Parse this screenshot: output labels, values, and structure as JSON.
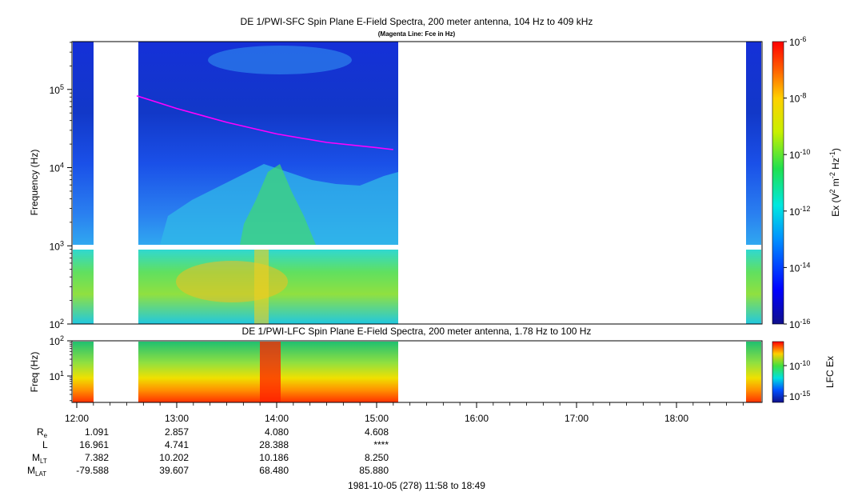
{
  "chart_data": [
    {
      "type": "heatmap",
      "title": "DE 1/PWI-SFC  Spin Plane E-Field Spectra, 200 meter antenna, 104 Hz to 409 kHz",
      "subtitle": "(Magenta Line: Fce in Hz)",
      "ylabel": "Frequency (Hz)",
      "y_scale": "log",
      "ylim": [
        100,
        409000
      ],
      "y_ticks": [
        {
          "label": "10",
          "exp": "2",
          "value": 100
        },
        {
          "label": "10",
          "exp": "3",
          "value": 1000
        },
        {
          "label": "10",
          "exp": "4",
          "value": 10000
        },
        {
          "label": "10",
          "exp": "5",
          "value": 100000
        }
      ],
      "colorbar": {
        "label_parts": [
          "Ex (V",
          "2",
          " m",
          "-2",
          " Hz",
          "-1",
          ")"
        ],
        "scale": "log",
        "range": [
          1e-16,
          1e-06
        ],
        "ticks": [
          {
            "label": "10",
            "exp": "-6"
          },
          {
            "label": "10",
            "exp": "-8"
          },
          {
            "label": "10",
            "exp": "-10"
          },
          {
            "label": "10",
            "exp": "-12"
          },
          {
            "label": "10",
            "exp": "-14"
          },
          {
            "label": "10",
            "exp": "-16"
          }
        ]
      },
      "data_intervals": [
        [
          "11:58",
          "12:10"
        ],
        [
          "12:36",
          "15:12"
        ],
        [
          "18:44",
          "18:49"
        ]
      ],
      "magenta_line_fce": [
        {
          "time": "12:36",
          "value": 83000
        },
        {
          "time": "13:00",
          "value": 57000
        },
        {
          "time": "13:30",
          "value": 38000
        },
        {
          "time": "14:00",
          "value": 27000
        },
        {
          "time": "14:30",
          "value": 21000
        },
        {
          "time": "15:00",
          "value": 18000
        },
        {
          "time": "15:10",
          "value": 17000
        }
      ]
    },
    {
      "type": "heatmap",
      "title": "DE 1/PWI-LFC  Spin Plane E-Field Spectra, 200 meter antenna, 1.78 Hz to 100 Hz",
      "ylabel": "Freq (Hz)",
      "y_scale": "log",
      "ylim": [
        1.78,
        100
      ],
      "y_ticks": [
        {
          "label": "10",
          "exp": "1",
          "value": 10
        },
        {
          "label": "10",
          "exp": "2",
          "value": 100
        }
      ],
      "colorbar": {
        "label": "LFC Ex",
        "scale": "log",
        "ticks": [
          {
            "label": "10",
            "exp": "-10"
          },
          {
            "label": "10",
            "exp": "-15"
          }
        ]
      },
      "data_intervals": [
        [
          "11:58",
          "12:10"
        ],
        [
          "12:36",
          "15:12"
        ],
        [
          "18:44",
          "18:49"
        ]
      ]
    }
  ],
  "x_axis": {
    "ticks": [
      "12:00",
      "13:00",
      "14:00",
      "15:00",
      "16:00",
      "17:00",
      "18:00"
    ],
    "range": [
      "11:58",
      "18:49"
    ]
  },
  "ephemeris": {
    "labels": [
      {
        "main": "R",
        "sub": "e"
      },
      {
        "main": "L",
        "sub": ""
      },
      {
        "main": "M",
        "sub": "LT"
      },
      {
        "main": "M",
        "sub": "LAT"
      }
    ],
    "rows": [
      [
        "1.091",
        "2.857",
        "4.080",
        "4.608"
      ],
      [
        "16.961",
        "4.741",
        "28.388",
        "****"
      ],
      [
        "7.382",
        "10.202",
        "10.186",
        "8.250"
      ],
      [
        "-79.588",
        "39.607",
        "68.480",
        "85.880"
      ]
    ]
  },
  "footer": "1981-10-05 (278) 11:58 to 18:49"
}
